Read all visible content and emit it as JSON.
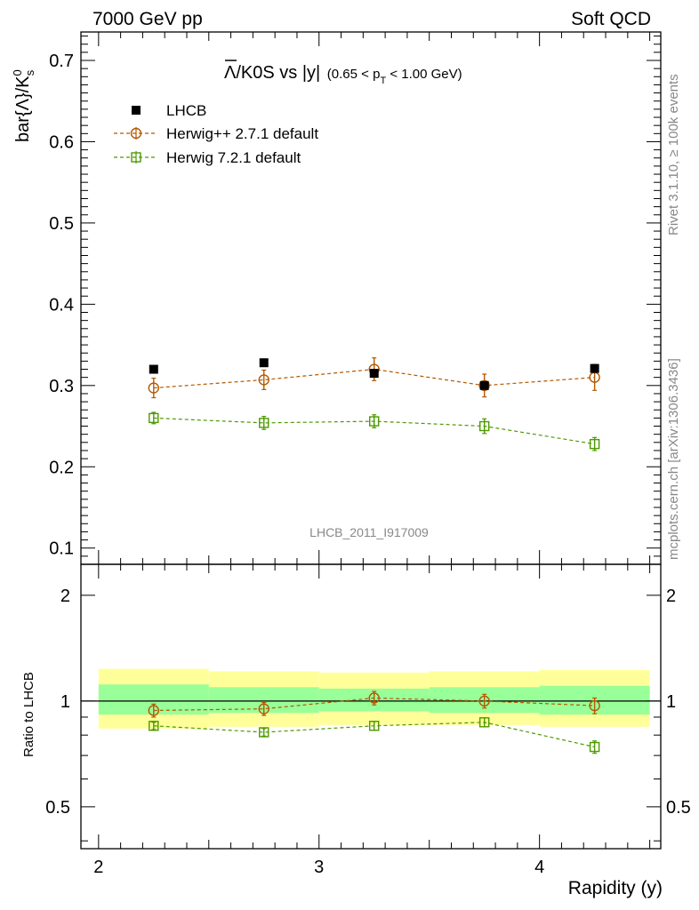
{
  "header": {
    "left": "7000 GeV pp",
    "right": "Soft QCD"
  },
  "side_text": {
    "rivet": "Rivet 3.1.10, ≥ 100k events",
    "mcplots": "mcplots.cern.ch [arXiv:1306.3436]"
  },
  "watermark": "LHCB_2011_I917009",
  "chart_data": [
    {
      "type": "scatter",
      "title": {
        "main": "Λ/K0S vs |y|",
        "sub_pre": "(0.65 < p",
        "sub_sub": "T",
        "sub_post": " < 1.00 GeV)"
      },
      "ylabel": {
        "base": "bar{Λ}/K",
        "sup": "0",
        "sub": "s"
      },
      "xlim": [
        1.92,
        4.55
      ],
      "ylim": [
        0.08,
        0.735
      ],
      "yticks": [
        0.1,
        0.2,
        0.3,
        0.4,
        0.5,
        0.6,
        0.7
      ],
      "ytick_labels": [
        "0.1",
        "0.2",
        "0.3",
        "0.4",
        "0.5",
        "0.6",
        "0.7"
      ],
      "legend": {
        "placement": "top-left",
        "entries": [
          "LHCB",
          "Herwig++ 2.7.1 default",
          "Herwig 7.2.1 default"
        ]
      },
      "series": [
        {
          "name": "LHCB",
          "color": "#000000",
          "marker": "square-filled",
          "x": [
            2.25,
            2.75,
            3.25,
            3.75,
            4.25
          ],
          "y": [
            0.32,
            0.328,
            0.315,
            0.3,
            0.321
          ],
          "yerr": [
            0.002,
            0.002,
            0.003,
            0.004,
            0.002
          ]
        },
        {
          "name": "Herwig++ 2.7.1 default",
          "color": "#b35900",
          "marker": "circle-open",
          "x": [
            2.25,
            2.75,
            3.25,
            3.75,
            4.25
          ],
          "y": [
            0.297,
            0.307,
            0.32,
            0.3,
            0.31
          ],
          "yerr": [
            0.012,
            0.012,
            0.014,
            0.014,
            0.016
          ]
        },
        {
          "name": "Herwig 7.2.1 default",
          "color": "#4d9900",
          "marker": "square-open",
          "x": [
            2.25,
            2.75,
            3.25,
            3.75,
            4.25
          ],
          "y": [
            0.26,
            0.254,
            0.256,
            0.25,
            0.228
          ],
          "yerr": [
            0.007,
            0.008,
            0.008,
            0.009,
            0.008
          ]
        }
      ]
    },
    {
      "type": "scatter",
      "ylabel": "Ratio to LHCB",
      "xlabel": "Rapidity (y)",
      "scale": "log",
      "xlim": [
        1.92,
        4.55
      ],
      "ylim": [
        0.38,
        2.45
      ],
      "xticks": [
        2,
        3,
        4
      ],
      "xtick_labels": [
        "2",
        "3",
        "4"
      ],
      "yticks": [
        0.5,
        1,
        2
      ],
      "ytick_labels": [
        "0.5",
        "1",
        "2"
      ],
      "bands": {
        "bins": [
          [
            2.0,
            2.5
          ],
          [
            2.5,
            3.0
          ],
          [
            3.0,
            3.5
          ],
          [
            3.5,
            4.0
          ],
          [
            4.0,
            4.5
          ]
        ],
        "yellow": [
          [
            0.835,
            1.235
          ],
          [
            0.845,
            1.215
          ],
          [
            0.855,
            1.205
          ],
          [
            0.855,
            1.215
          ],
          [
            0.845,
            1.225
          ]
        ],
        "green": [
          [
            0.915,
            1.115
          ],
          [
            0.925,
            1.095
          ],
          [
            0.935,
            1.085
          ],
          [
            0.925,
            1.095
          ],
          [
            0.915,
            1.105
          ]
        ],
        "yellow_color": "#ffff99",
        "green_color": "#99ff99"
      },
      "series": [
        {
          "name": "Herwig++ 2.7.1 default",
          "color": "#b35900",
          "marker": "circle-open",
          "x": [
            2.25,
            2.75,
            3.25,
            3.75,
            4.25
          ],
          "y": [
            0.94,
            0.95,
            1.02,
            1.0,
            0.97
          ],
          "yerr": [
            0.04,
            0.04,
            0.045,
            0.045,
            0.05
          ]
        },
        {
          "name": "Herwig 7.2.1 default",
          "color": "#4d9900",
          "marker": "square-open",
          "x": [
            2.25,
            2.75,
            3.25,
            3.75,
            4.25
          ],
          "y": [
            0.85,
            0.815,
            0.85,
            0.87,
            0.74
          ],
          "yerr": [
            0.02,
            0.02,
            0.025,
            0.025,
            0.03
          ]
        }
      ]
    }
  ]
}
